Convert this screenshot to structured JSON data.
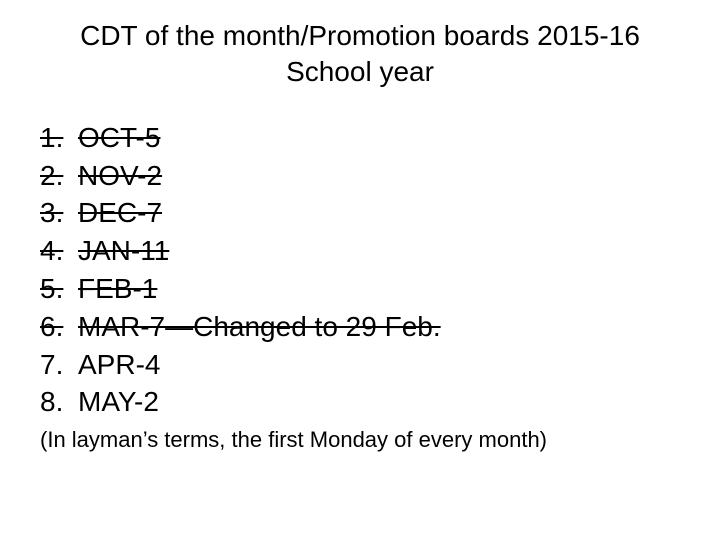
{
  "title": "CDT of the month/Promotion boards 2015-16 School year",
  "items": [
    {
      "num": "1.",
      "text": "OCT-5",
      "struck": true
    },
    {
      "num": "2.",
      "text": "NOV-2",
      "struck": true
    },
    {
      "num": "3.",
      "text": "DEC-7",
      "struck": true
    },
    {
      "num": "4.",
      "text": "JAN-11",
      "struck": true
    },
    {
      "num": "5.",
      "text": "FEB-1",
      "struck": true
    },
    {
      "num": "6.",
      "text": "MAR-7—Changed to 29 Feb.",
      "struck": true
    },
    {
      "num": "7.",
      "text": "APR-4",
      "struck": false
    },
    {
      "num": "8.",
      "text": "MAY-2",
      "struck": false
    }
  ],
  "footnote": "(In layman’s terms, the first Monday of every month)"
}
